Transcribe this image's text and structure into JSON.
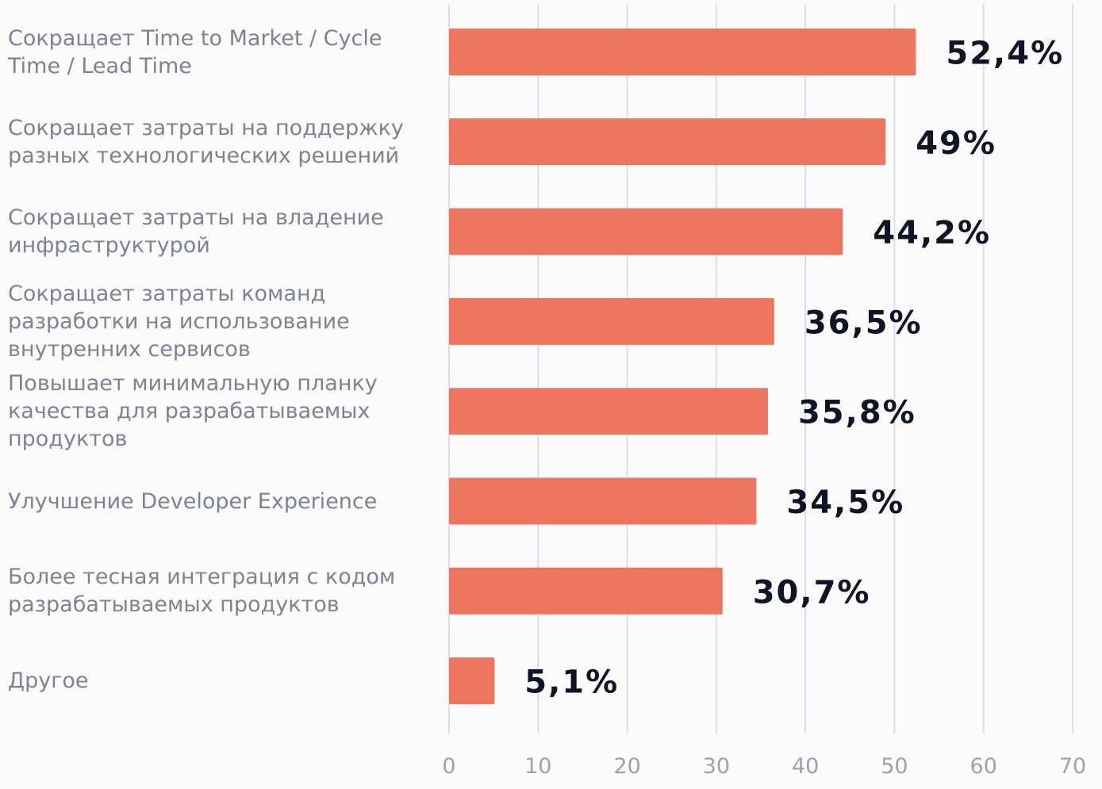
{
  "chart_data": {
    "type": "bar",
    "orientation": "horizontal",
    "categories": [
      "Сокращает Time to Market / Cycle Time / Lead Time",
      "Сокращает затраты на поддержку разных технологических решений",
      "Сокращает затраты на владение инфраструктурой",
      "Сокращает затраты команд разработки на использование внутренних сервисов",
      "Повышает минимальную планку качества для разрабатываемых продуктов",
      "Улучшение Developer Experience",
      "Более тесная интеграция с кодом разрабатываемых продуктов",
      "Другое"
    ],
    "values": [
      52.4,
      49,
      44.2,
      36.5,
      35.8,
      34.5,
      30.7,
      5.1
    ],
    "data_labels": [
      "52,4%",
      "49%",
      "44,2%",
      "36,5%",
      "35,8%",
      "34,5%",
      "30,7%",
      "5,1%"
    ],
    "xlim": [
      0,
      70
    ],
    "xticks": [
      "0",
      "10",
      "20",
      "30",
      "40",
      "50",
      "60",
      "70"
    ],
    "grid": "vertical",
    "title": "",
    "xlabel": "",
    "ylabel": "",
    "colors": {
      "bar": "#ec7660",
      "grid": "#dcdaf4",
      "category_text": "#7e8294",
      "tick_text": "#9ea1b0",
      "value_text": "#0f1525"
    }
  }
}
